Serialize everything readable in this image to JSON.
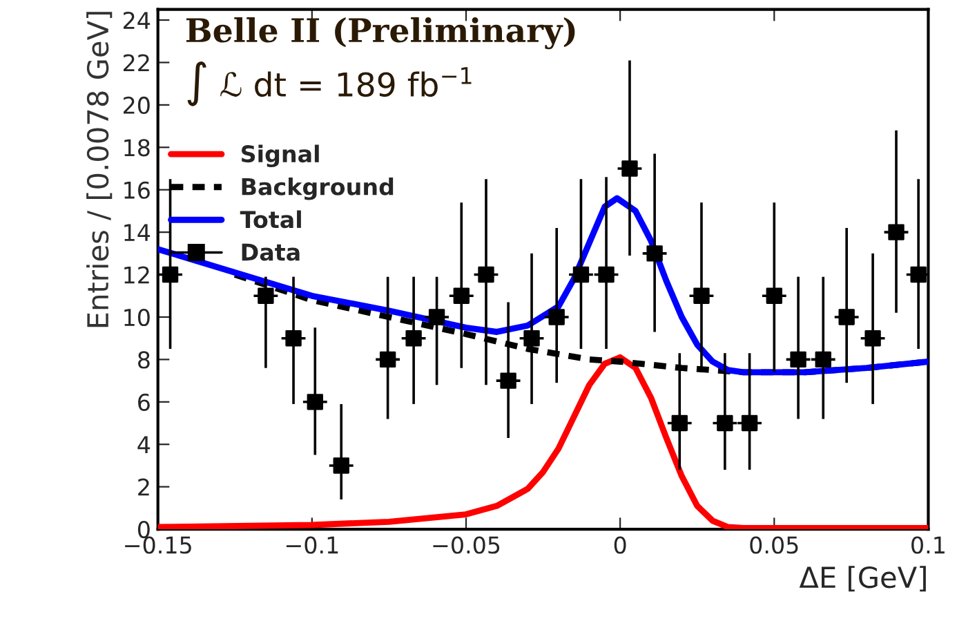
{
  "chart_data": {
    "type": "line",
    "xlabel": "ΔE [GeV]",
    "ylabel": "Entries / [0.0078 GeV]",
    "annotations": [
      "Belle II (Preliminary)",
      "∫ ℒ dt = 189 fb$^{−1}$"
    ],
    "xlim": [
      -0.15,
      0.1
    ],
    "ylim": [
      0,
      24.5
    ],
    "xticks": [
      {
        "value": -0.15,
        "label": "−0.15"
      },
      {
        "value": -0.1,
        "label": "−0.1"
      },
      {
        "value": -0.05,
        "label": "−0.05"
      },
      0,
      0.05,
      0.1
    ],
    "yticks": [
      0,
      2,
      4,
      6,
      8,
      10,
      12,
      14,
      16,
      18,
      20,
      22,
      24
    ],
    "grid": false,
    "legend": "top left",
    "series": [
      {
        "name": "Signal",
        "type": "line",
        "color": "#ff0000",
        "line_style": "solid",
        "marker": "none",
        "x": [
          -0.15,
          -0.1,
          -0.075,
          -0.05,
          -0.04,
          -0.03,
          -0.025,
          -0.02,
          -0.015,
          -0.01,
          -0.005,
          0,
          0.005,
          0.01,
          0.015,
          0.02,
          0.025,
          0.03,
          0.035,
          0.04,
          0.1
        ],
        "values": [
          0.1,
          0.2,
          0.35,
          0.7,
          1.1,
          1.9,
          2.7,
          3.8,
          5.3,
          6.8,
          7.8,
          8.1,
          7.6,
          6.2,
          4.3,
          2.5,
          1.1,
          0.4,
          0.1,
          0.05,
          0.05
        ]
      },
      {
        "name": "Background",
        "type": "line",
        "color": "#000000",
        "line_style": "dashed",
        "marker": "none",
        "x": [
          -0.125,
          -0.1,
          -0.075,
          -0.05,
          -0.03,
          -0.01,
          0,
          0.02,
          0.04,
          0.06,
          0.08,
          0.1
        ],
        "values": [
          12.0,
          10.8,
          10.0,
          9.2,
          8.5,
          8.0,
          7.9,
          7.6,
          7.4,
          7.4,
          7.6,
          7.9
        ]
      },
      {
        "name": "Total",
        "type": "line",
        "color": "#0000ff",
        "line_style": "solid",
        "marker": "none",
        "x": [
          -0.15,
          -0.125,
          -0.1,
          -0.075,
          -0.05,
          -0.04,
          -0.03,
          -0.02,
          -0.015,
          -0.01,
          -0.005,
          -0.001,
          0.005,
          0.01,
          0.015,
          0.02,
          0.025,
          0.03,
          0.035,
          0.04,
          0.06,
          0.08,
          0.1
        ],
        "values": [
          13.2,
          12.1,
          11.0,
          10.3,
          9.5,
          9.3,
          9.6,
          10.5,
          11.8,
          13.5,
          15.2,
          15.6,
          15.0,
          13.6,
          11.7,
          10.0,
          8.7,
          7.9,
          7.5,
          7.4,
          7.4,
          7.6,
          7.9
        ]
      },
      {
        "name": "Data",
        "type": "scatter",
        "color": "#000000",
        "marker": "square",
        "x": [
          -0.146,
          -0.115,
          -0.106,
          -0.099,
          -0.0905,
          -0.0754,
          -0.067,
          -0.0595,
          -0.0515,
          -0.0435,
          -0.0363,
          -0.0287,
          -0.0206,
          -0.0127,
          -0.0045,
          0.0031,
          0.0112,
          0.0193,
          0.0264,
          0.034,
          0.042,
          0.05,
          0.0578,
          0.0659,
          0.0735,
          0.082,
          0.0896,
          0.0968
        ],
        "values": [
          12,
          11,
          9,
          6,
          3,
          8,
          9,
          10,
          11,
          12,
          7,
          9,
          10,
          12,
          12,
          17,
          13,
          5,
          11,
          5,
          5,
          11,
          8,
          8,
          10,
          9,
          14,
          12
        ],
        "xerrors": [
          0.0039,
          0.0039,
          0.0039,
          0.0039,
          0.0039,
          0.0039,
          0.0039,
          0.0039,
          0.0039,
          0.0039,
          0.0039,
          0.0039,
          0.0039,
          0.0039,
          0.0039,
          0.0039,
          0.0039,
          0.0039,
          0.0039,
          0.0039,
          0.0039,
          0.0039,
          0.0039,
          0.0039,
          0.0039,
          0.0039,
          0.0039,
          0.0039
        ],
        "errors": [
          [
            8.5,
            16.5
          ],
          [
            7.6,
            11.9
          ],
          [
            5.9,
            11.9
          ],
          [
            3.5,
            9.5
          ],
          [
            1.4,
            5.9
          ],
          [
            5.2,
            11.9
          ],
          [
            5.9,
            11.9
          ],
          [
            6.8,
            11.9
          ],
          [
            7.6,
            15.4
          ],
          [
            6.8,
            16.5
          ],
          [
            4.3,
            10.7
          ],
          [
            5.9,
            13.0
          ],
          [
            6.9,
            14.2
          ],
          [
            8.5,
            16.5
          ],
          [
            8.5,
            16.6
          ],
          [
            12.9,
            22.1
          ],
          [
            9.3,
            17.7
          ],
          [
            2.8,
            8.3
          ],
          [
            7.4,
            15.4
          ],
          [
            2.8,
            8.3
          ],
          [
            2.8,
            8.3
          ],
          [
            7.4,
            15.4
          ],
          [
            5.2,
            11.9
          ],
          [
            5.2,
            11.9
          ],
          [
            6.9,
            14.2
          ],
          [
            5.9,
            13.0
          ],
          [
            10.2,
            18.8
          ],
          [
            8.5,
            16.5
          ]
        ]
      }
    ]
  }
}
